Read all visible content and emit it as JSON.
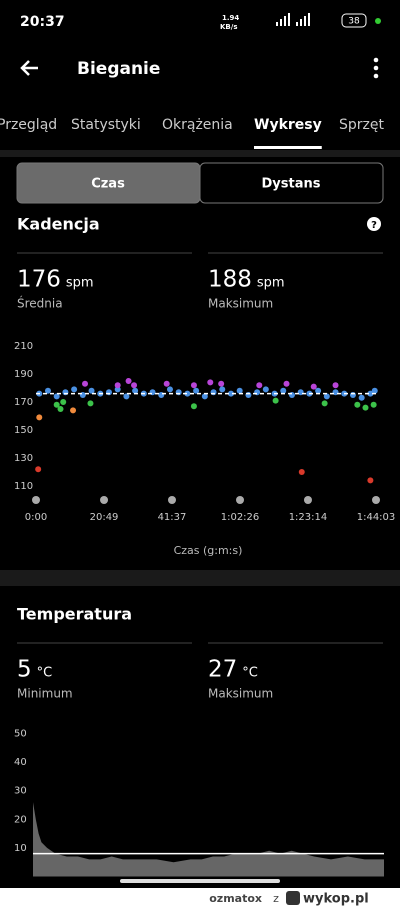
{
  "status_bar": {
    "time": "20:37",
    "net_speed": "1.94",
    "net_unit": "KB/s",
    "battery": "38"
  },
  "header": {
    "title": "Bieganie"
  },
  "tabs": {
    "items": [
      "Przegląd",
      "Statystyki",
      "Okrążenia",
      "Wykresy",
      "Sprzęt"
    ],
    "selected": 3
  },
  "toggle": {
    "options": [
      "Czas",
      "Dystans"
    ],
    "selected": 0
  },
  "cadence": {
    "title": "Kadencja",
    "stats": [
      {
        "value": 176,
        "unit": "spm",
        "label": "Średnia"
      },
      {
        "value": 188,
        "unit": "spm",
        "label": "Maksimum"
      }
    ],
    "chart": {
      "type": "scatter",
      "x_label": "Czas (g:m:s)",
      "xlim": [
        0,
        6243
      ],
      "ylim": [
        104,
        214
      ],
      "yticks": [
        110,
        130,
        150,
        170,
        190,
        210
      ],
      "xticks": [
        {
          "value": 0,
          "label": "0:00"
        },
        {
          "value": 1249,
          "label": "20:49"
        },
        {
          "value": 2497,
          "label": "41:37"
        },
        {
          "value": 3746,
          "label": "1:02:26"
        },
        {
          "value": 4994,
          "label": "1:23:14"
        },
        {
          "value": 6243,
          "label": "1:44:03"
        }
      ],
      "series": [
        {
          "color": "#4a90e2",
          "x": [
            60,
            220,
            380,
            540,
            700,
            860,
            1020,
            1180,
            1340,
            1500,
            1660,
            1820,
            1980,
            2140,
            2300,
            2460,
            2620,
            2780,
            2940,
            3100,
            3260,
            3420,
            3580,
            3740,
            3900,
            4060,
            4220,
            4380,
            4540,
            4700,
            4860,
            5020,
            5180,
            5340,
            5500,
            5660,
            5820,
            5980,
            6140,
            6220
          ],
          "values": [
            176,
            178,
            174,
            177,
            179,
            175,
            178,
            176,
            177,
            179,
            174,
            178,
            176,
            177,
            175,
            179,
            177,
            176,
            178,
            174,
            177,
            179,
            176,
            178,
            175,
            177,
            179,
            176,
            178,
            175,
            177,
            176,
            178,
            174,
            177,
            176,
            175,
            173,
            176,
            178
          ]
        },
        {
          "color": "#b845d8",
          "x": [
            900,
            1500,
            1700,
            1800,
            2400,
            2900,
            3200,
            3400,
            4100,
            4600,
            5100,
            5500
          ],
          "values": [
            183,
            182,
            185,
            182,
            183,
            182,
            184,
            183,
            182,
            183,
            181,
            182
          ]
        },
        {
          "color": "#3cc24a",
          "x": [
            380,
            450,
            500,
            1000,
            2900,
            4400,
            5300,
            5900,
            6050,
            6200
          ],
          "values": [
            168,
            165,
            170,
            169,
            167,
            171,
            169,
            168,
            166,
            168
          ]
        },
        {
          "color": "#f08a3c",
          "x": [
            60,
            680
          ],
          "values": [
            159,
            164
          ]
        },
        {
          "color": "#d93a2b",
          "x": [
            40,
            4880,
            6140
          ],
          "values": [
            122,
            120,
            114
          ]
        }
      ]
    }
  },
  "temperature": {
    "title": "Temperatura",
    "stats": [
      {
        "value": 5,
        "unit": "°C",
        "label": "Minimum"
      },
      {
        "value": 27,
        "unit": "°C",
        "label": "Maksimum"
      }
    ],
    "chart": {
      "type": "area",
      "color": "#666666",
      "xlim": [
        0,
        6243
      ],
      "ylim": [
        0,
        53
      ],
      "yticks": [
        10,
        20,
        30,
        40,
        50
      ],
      "reference_line": 8,
      "x": [
        0,
        50,
        100,
        150,
        250,
        400,
        600,
        800,
        1000,
        1200,
        1400,
        1600,
        1800,
        2000,
        2200,
        2500,
        2800,
        3000,
        3200,
        3400,
        3600,
        3800,
        4000,
        4200,
        4400,
        4600,
        4800,
        5000,
        5300,
        5600,
        5900,
        6243
      ],
      "values": [
        26,
        20,
        15,
        12,
        10,
        8,
        7,
        7,
        6,
        6,
        7,
        6,
        6,
        6,
        6,
        5,
        6,
        6,
        7,
        7,
        8,
        8,
        8,
        9,
        8,
        9,
        8,
        7,
        6,
        7,
        6,
        6
      ]
    }
  },
  "footer": {
    "user": "ozmatox",
    "connector": "z",
    "site": "wykop.pl"
  }
}
